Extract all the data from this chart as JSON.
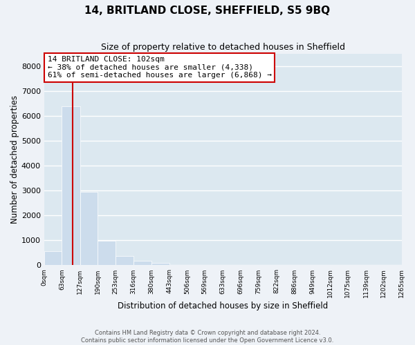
{
  "title": "14, BRITLAND CLOSE, SHEFFIELD, S5 9BQ",
  "subtitle": "Size of property relative to detached houses in Sheffield",
  "xlabel": "Distribution of detached houses by size in Sheffield",
  "ylabel": "Number of detached properties",
  "bar_values": [
    560,
    6380,
    2940,
    980,
    380,
    170,
    90,
    0,
    0,
    0,
    0,
    0,
    0,
    0,
    0,
    0,
    0,
    0,
    0,
    0
  ],
  "bin_labels": [
    "0sqm",
    "63sqm",
    "127sqm",
    "190sqm",
    "253sqm",
    "316sqm",
    "380sqm",
    "443sqm",
    "506sqm",
    "569sqm",
    "633sqm",
    "696sqm",
    "759sqm",
    "822sqm",
    "886sqm",
    "949sqm",
    "1012sqm",
    "1075sqm",
    "1139sqm",
    "1202sqm",
    "1265sqm"
  ],
  "bar_color": "#ccdcec",
  "bar_edge_color": "#ffffff",
  "property_line_x": 102,
  "property_line_color": "#cc0000",
  "annotation_line1": "14 BRITLAND CLOSE: 102sqm",
  "annotation_line2": "← 38% of detached houses are smaller (4,338)",
  "annotation_line3": "61% of semi-detached houses are larger (6,868) →",
  "annotation_box_color": "#ffffff",
  "annotation_box_edge_color": "#cc0000",
  "ylim": [
    0,
    8500
  ],
  "yticks": [
    0,
    1000,
    2000,
    3000,
    4000,
    5000,
    6000,
    7000,
    8000
  ],
  "footer_text": "Contains HM Land Registry data © Crown copyright and database right 2024.\nContains public sector information licensed under the Open Government Licence v3.0.",
  "background_color": "#eef2f7",
  "plot_background_color": "#dce8f0",
  "grid_color": "#ffffff",
  "bin_edges": [
    0,
    63,
    127,
    190,
    253,
    316,
    380,
    443,
    506,
    569,
    633,
    696,
    759,
    822,
    886,
    949,
    1012,
    1075,
    1139,
    1202,
    1265
  ]
}
